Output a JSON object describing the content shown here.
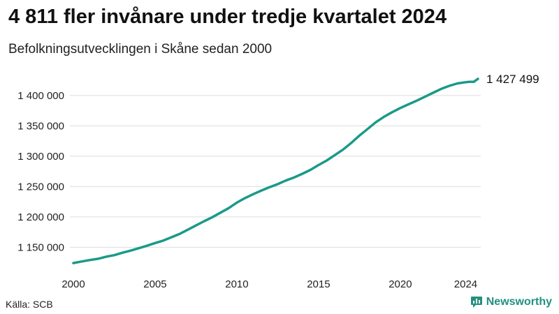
{
  "title": "4 811 fler invånare under tredje kvartalet 2024",
  "subtitle": "Befolkningsutvecklingen i Skåne sedan 2000",
  "source": "Källa: SCB",
  "brand": "Newsworthy",
  "colors": {
    "line": "#1a9a88",
    "brand": "#23907f",
    "grid": "#dddddd"
  },
  "chart_data": {
    "type": "line",
    "x": [
      2000,
      2000.5,
      2001,
      2001.5,
      2002,
      2002.5,
      2003,
      2003.5,
      2004,
      2004.5,
      2005,
      2005.5,
      2006,
      2006.5,
      2007,
      2007.5,
      2008,
      2008.5,
      2009,
      2009.5,
      2010,
      2010.5,
      2011,
      2011.5,
      2012,
      2012.5,
      2013,
      2013.5,
      2014,
      2014.5,
      2015,
      2015.5,
      2016,
      2016.5,
      2017,
      2017.5,
      2018,
      2018.5,
      2019,
      2019.5,
      2020,
      2020.5,
      2021,
      2021.5,
      2022,
      2022.5,
      2023,
      2023.5,
      2024,
      2024.25,
      2024.5,
      2024.75
    ],
    "values": [
      1124000,
      1126500,
      1129000,
      1131000,
      1134500,
      1137000,
      1141000,
      1144500,
      1148500,
      1152500,
      1157000,
      1161000,
      1166500,
      1172000,
      1179000,
      1186000,
      1193000,
      1199500,
      1207000,
      1214500,
      1223500,
      1231000,
      1237500,
      1243500,
      1249000,
      1254000,
      1260000,
      1265000,
      1271000,
      1277500,
      1285500,
      1293000,
      1302000,
      1311000,
      1322000,
      1334000,
      1345000,
      1356000,
      1365000,
      1372500,
      1379500,
      1385500,
      1391500,
      1398000,
      1404500,
      1411000,
      1416000,
      1420000,
      1422000,
      1422500,
      1422700,
      1427499
    ],
    "end_label": "1 427 499",
    "x_ticks": [
      2000,
      2005,
      2010,
      2015,
      2020,
      2024
    ],
    "y_ticks": [
      1150000,
      1200000,
      1250000,
      1300000,
      1350000,
      1400000
    ],
    "x_tick_labels": [
      "2000",
      "2005",
      "2010",
      "2015",
      "2020",
      "2024"
    ],
    "y_tick_labels": [
      "1 150 000",
      "1 200 000",
      "1 250 000",
      "1 300 000",
      "1 350 000",
      "1 400 000"
    ],
    "xlim": [
      2000,
      2024.75
    ],
    "ylim": [
      1124000,
      1427499
    ],
    "grid": "horizontal",
    "legend": "none"
  }
}
